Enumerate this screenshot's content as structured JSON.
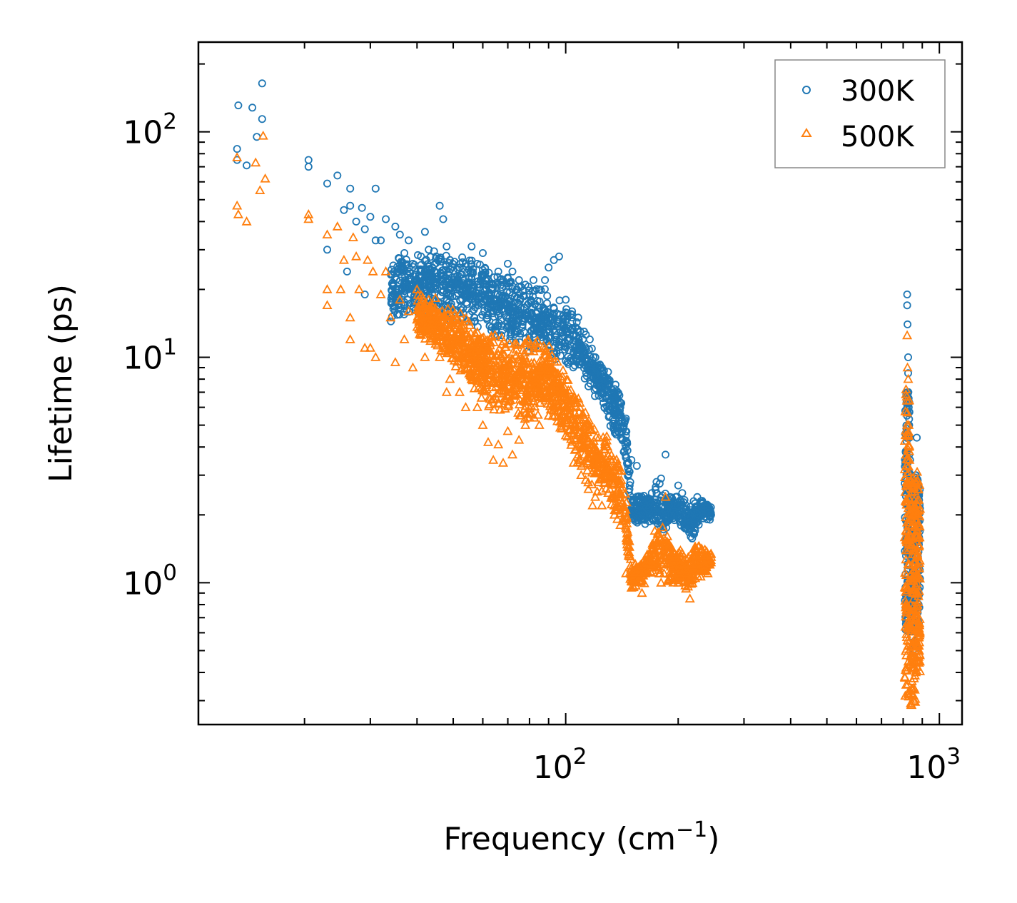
{
  "chart_data": {
    "type": "scatter",
    "xscale": "log",
    "yscale": "log",
    "xlim": [
      10.4,
      1150
    ],
    "ylim": [
      0.235,
      250
    ],
    "xlabel": "Frequency (cm",
    "xlabel_sup": "−1",
    "xlabel_close": ")",
    "ylabel": "Lifetime (ps)",
    "x_ticks": [
      {
        "value": 100,
        "base": "10",
        "exp": "2"
      },
      {
        "value": 1000,
        "base": "10",
        "exp": "3"
      }
    ],
    "y_ticks": [
      {
        "value": 1,
        "base": "10",
        "exp": "0"
      },
      {
        "value": 10,
        "base": "10",
        "exp": "1"
      },
      {
        "value": 100,
        "base": "10",
        "exp": "2"
      }
    ],
    "legend": {
      "placement": "top-right"
    },
    "series": [
      {
        "name": "300K",
        "marker": "circle",
        "color": "#1f77b4",
        "points": [
          [
            13.2,
            75
          ],
          [
            13.2,
            84
          ],
          [
            13.3,
            131
          ],
          [
            14.0,
            71
          ],
          [
            14.5,
            128
          ],
          [
            14.9,
            95
          ],
          [
            15.4,
            114
          ],
          [
            15.4,
            164
          ],
          [
            20.5,
            75
          ],
          [
            20.5,
            70
          ],
          [
            23,
            30
          ],
          [
            23,
            59
          ],
          [
            24.5,
            64
          ],
          [
            25.5,
            45
          ],
          [
            26,
            24
          ],
          [
            26.5,
            56
          ],
          [
            26.5,
            47
          ],
          [
            27.5,
            40
          ],
          [
            28.5,
            46
          ],
          [
            29,
            37
          ],
          [
            29,
            19
          ],
          [
            30,
            42
          ],
          [
            31,
            33
          ],
          [
            31,
            56
          ],
          [
            32,
            33
          ],
          [
            33,
            41
          ],
          [
            35,
            38
          ],
          [
            36,
            35
          ],
          [
            37,
            29
          ],
          [
            38,
            33
          ],
          [
            39,
            26
          ],
          [
            40,
            22
          ],
          [
            41,
            28
          ],
          [
            42,
            36
          ],
          [
            43,
            30
          ],
          [
            44,
            25
          ],
          [
            45,
            28
          ],
          [
            46,
            47
          ],
          [
            47,
            41
          ],
          [
            48,
            31
          ],
          [
            49,
            27
          ],
          [
            50,
            22
          ],
          [
            52,
            25
          ],
          [
            54,
            26
          ],
          [
            56,
            31
          ],
          [
            58,
            26
          ],
          [
            60,
            29
          ],
          [
            62,
            22
          ],
          [
            64,
            21
          ],
          [
            66,
            24
          ],
          [
            68,
            22
          ],
          [
            70,
            26
          ],
          [
            72,
            24
          ],
          [
            75,
            22
          ],
          [
            78,
            21
          ],
          [
            80,
            19
          ],
          [
            82,
            22
          ],
          [
            85,
            20
          ],
          [
            88,
            22
          ],
          [
            90,
            25
          ],
          [
            93,
            27
          ],
          [
            96,
            28
          ],
          [
            100,
            18
          ],
          [
            104,
            16
          ],
          [
            108,
            15
          ],
          [
            112,
            13
          ],
          [
            116,
            12
          ],
          [
            120,
            10
          ],
          [
            125,
            9
          ],
          [
            130,
            8
          ],
          [
            135,
            7
          ],
          [
            140,
            6
          ],
          [
            145,
            4.5
          ],
          [
            150,
            3.5
          ],
          [
            155,
            3.3
          ],
          [
            160,
            2.4
          ],
          [
            165,
            2.2
          ],
          [
            170,
            2.5
          ],
          [
            175,
            2.8
          ],
          [
            180,
            2.9
          ],
          [
            185,
            3.7
          ],
          [
            190,
            2.4
          ],
          [
            195,
            2.2
          ],
          [
            200,
            2.7
          ],
          [
            205,
            2.5
          ],
          [
            210,
            2.2
          ],
          [
            215,
            2.0
          ],
          [
            220,
            2.3
          ],
          [
            225,
            2.4
          ],
          [
            230,
            2.3
          ],
          [
            235,
            2.2
          ],
          [
            240,
            2.1
          ],
          [
            245,
            2.0
          ],
          [
            820,
            19
          ],
          [
            820,
            17
          ],
          [
            822,
            14
          ],
          [
            825,
            10
          ],
          [
            825,
            8.5
          ],
          [
            826,
            7
          ],
          [
            828,
            6
          ],
          [
            830,
            5
          ],
          [
            832,
            4.4
          ],
          [
            835,
            3.5
          ],
          [
            838,
            3.0
          ],
          [
            840,
            2.6
          ],
          [
            845,
            2.2
          ],
          [
            850,
            1.8
          ],
          [
            855,
            1.5
          ],
          [
            860,
            1.2
          ],
          [
            865,
            3.0
          ],
          [
            870,
            4.4
          ],
          [
            872,
            2.8
          ],
          [
            875,
            2.2
          ],
          [
            878,
            1.6
          ]
        ],
        "envelope": [
          [
            34,
            14,
            30
          ],
          [
            40,
            15,
            30
          ],
          [
            50,
            14,
            30
          ],
          [
            60,
            13,
            27
          ],
          [
            70,
            11,
            25
          ],
          [
            80,
            10,
            22
          ],
          [
            90,
            10,
            20
          ],
          [
            100,
            9,
            18
          ],
          [
            110,
            8,
            14
          ],
          [
            120,
            6.5,
            11
          ],
          [
            130,
            5,
            9
          ],
          [
            140,
            4,
            7
          ],
          [
            145,
            3.4,
            5.5
          ],
          [
            150,
            1.8,
            2.5
          ],
          [
            160,
            1.8,
            2.5
          ],
          [
            170,
            1.8,
            2.6
          ],
          [
            180,
            1.6,
            2.9
          ],
          [
            190,
            1.8,
            2.4
          ],
          [
            200,
            1.8,
            2.6
          ],
          [
            210,
            1.6,
            2.3
          ],
          [
            220,
            1.5,
            2.3
          ],
          [
            230,
            1.8,
            2.4
          ],
          [
            245,
            1.9,
            2.2
          ]
        ],
        "vband": [
          [
            820,
            0.6,
            7
          ],
          [
            850,
            0.5,
            3
          ],
          [
            875,
            0.6,
            3
          ]
        ]
      },
      {
        "name": "500K",
        "marker": "triangle",
        "color": "#ff7f0e",
        "points": [
          [
            13.2,
            47
          ],
          [
            13.2,
            77
          ],
          [
            13.3,
            43
          ],
          [
            14.0,
            40
          ],
          [
            14.8,
            73
          ],
          [
            15.2,
            55
          ],
          [
            15.5,
            96
          ],
          [
            15.7,
            62
          ],
          [
            20.5,
            43
          ],
          [
            20.5,
            41
          ],
          [
            23,
            35
          ],
          [
            23,
            20
          ],
          [
            23,
            17
          ],
          [
            24.5,
            38
          ],
          [
            25,
            20
          ],
          [
            25.5,
            27
          ],
          [
            26.5,
            12
          ],
          [
            26.5,
            15
          ],
          [
            27,
            34
          ],
          [
            27.5,
            28
          ],
          [
            28,
            20
          ],
          [
            29,
            11
          ],
          [
            29.5,
            27
          ],
          [
            30,
            11
          ],
          [
            30.5,
            24
          ],
          [
            31,
            10
          ],
          [
            32,
            19
          ],
          [
            33,
            24
          ],
          [
            34,
            15
          ],
          [
            35,
            9.5
          ],
          [
            36,
            18
          ],
          [
            37,
            12
          ],
          [
            38,
            16
          ],
          [
            39,
            9
          ],
          [
            40,
            20
          ],
          [
            41,
            13
          ],
          [
            42,
            10
          ],
          [
            43,
            18
          ],
          [
            44,
            14
          ],
          [
            45,
            12
          ],
          [
            46,
            10
          ],
          [
            47,
            15
          ],
          [
            48,
            7
          ],
          [
            49,
            8
          ],
          [
            50,
            12
          ],
          [
            52,
            7
          ],
          [
            54,
            6
          ],
          [
            56,
            8
          ],
          [
            58,
            6
          ],
          [
            60,
            5
          ],
          [
            62,
            4.2
          ],
          [
            64,
            3.5
          ],
          [
            66,
            4.1
          ],
          [
            68,
            3.4
          ],
          [
            70,
            4.7
          ],
          [
            72,
            3.7
          ],
          [
            75,
            4.3
          ],
          [
            78,
            5
          ],
          [
            80,
            5.4
          ],
          [
            85,
            5
          ],
          [
            90,
            5.5
          ],
          [
            95,
            5.2
          ],
          [
            100,
            4.5
          ],
          [
            105,
            3.4
          ],
          [
            110,
            3.0
          ],
          [
            115,
            2.6
          ],
          [
            118,
            2.2
          ],
          [
            120,
            2.4
          ],
          [
            125,
            2.2
          ],
          [
            130,
            2.5
          ],
          [
            135,
            2.0
          ],
          [
            140,
            1.8
          ],
          [
            145,
            1.1
          ],
          [
            150,
            0.95
          ],
          [
            160,
            0.9
          ],
          [
            170,
            1.2
          ],
          [
            180,
            1.0
          ],
          [
            185,
            2.4
          ],
          [
            190,
            1.2
          ],
          [
            200,
            1.0
          ],
          [
            210,
            1.1
          ],
          [
            215,
            0.85
          ],
          [
            220,
            1.2
          ],
          [
            230,
            1.4
          ],
          [
            240,
            1.1
          ],
          [
            245,
            1.3
          ],
          [
            820,
            12.5
          ],
          [
            822,
            9
          ],
          [
            825,
            8
          ],
          [
            828,
            5
          ],
          [
            830,
            4
          ],
          [
            832,
            3.5
          ],
          [
            835,
            2.8
          ],
          [
            838,
            2.2
          ],
          [
            840,
            1.6
          ],
          [
            845,
            1.2
          ],
          [
            850,
            0.9
          ],
          [
            855,
            0.7
          ],
          [
            860,
            0.5
          ],
          [
            865,
            0.4
          ],
          [
            870,
            2.0
          ],
          [
            872,
            3.1
          ],
          [
            875,
            2.6
          ],
          [
            878,
            2.0
          ]
        ],
        "envelope": [
          [
            40,
            12,
            20
          ],
          [
            50,
            9,
            17
          ],
          [
            60,
            6,
            14
          ],
          [
            70,
            5,
            12
          ],
          [
            80,
            5,
            13
          ],
          [
            90,
            5.5,
            12
          ],
          [
            100,
            4,
            9
          ],
          [
            110,
            3,
            7
          ],
          [
            120,
            2.5,
            5
          ],
          [
            130,
            2.2,
            4.5
          ],
          [
            140,
            1.8,
            3.5
          ],
          [
            145,
            1.5,
            2.5
          ],
          [
            150,
            0.9,
            1.2
          ],
          [
            160,
            0.95,
            1.3
          ],
          [
            170,
            1.0,
            1.6
          ],
          [
            180,
            1.0,
            2.0
          ],
          [
            190,
            0.95,
            1.6
          ],
          [
            200,
            1.0,
            1.5
          ],
          [
            210,
            0.9,
            1.3
          ],
          [
            220,
            1.0,
            1.5
          ],
          [
            230,
            1.0,
            1.5
          ],
          [
            245,
            1.1,
            1.4
          ]
        ],
        "vband": [
          [
            820,
            0.3,
            8
          ],
          [
            850,
            0.28,
            3
          ],
          [
            875,
            0.4,
            3
          ]
        ]
      }
    ]
  }
}
